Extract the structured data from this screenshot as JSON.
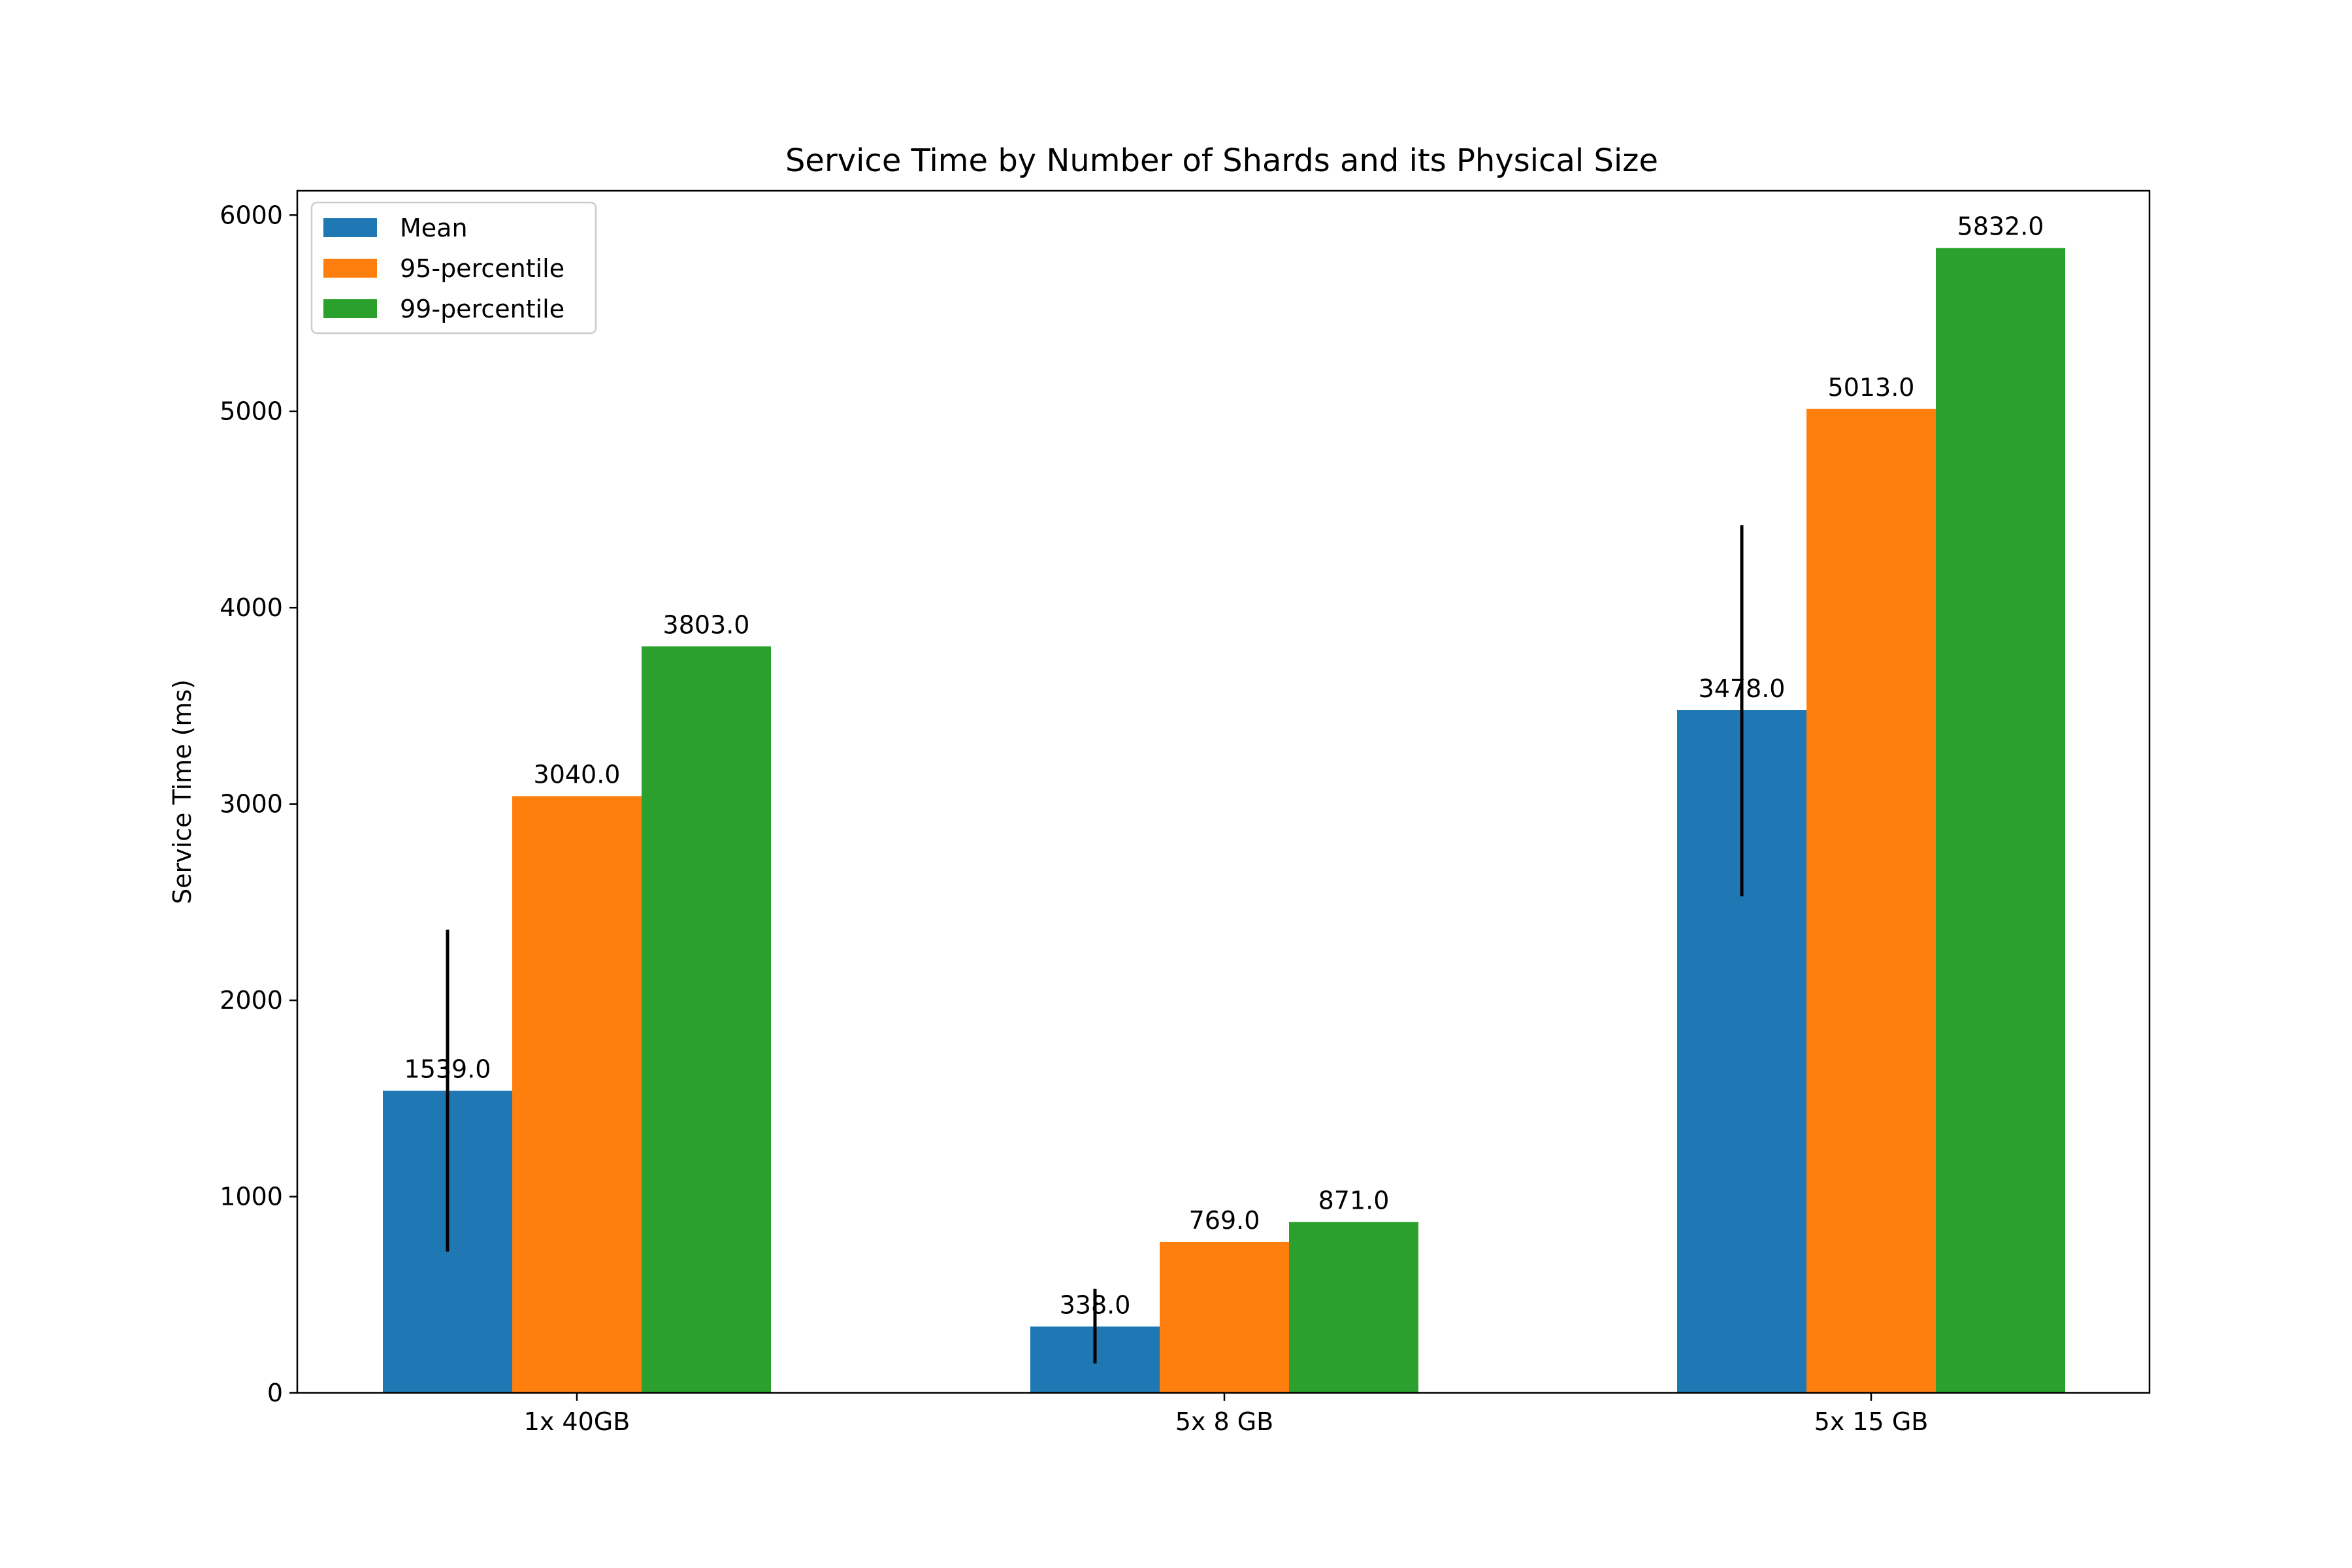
{
  "chart_data": {
    "type": "bar",
    "title": "Service Time by Number of Shards and its Physical Size",
    "xlabel": "",
    "ylabel": "Service Time (ms)",
    "categories": [
      "1x 40GB",
      "5x 8 GB",
      "5x 15 GB"
    ],
    "ylim": [
      0,
      6124
    ],
    "yticks": [
      0,
      1000,
      2000,
      3000,
      4000,
      5000,
      6000
    ],
    "series": [
      {
        "name": "Mean",
        "color": "#1f77b4",
        "values": [
          1539.0,
          338.0,
          3478.0
        ],
        "error_low": [
          720,
          150,
          2530
        ],
        "error_high": [
          2360,
          530,
          4420
        ]
      },
      {
        "name": "95-percentile",
        "color": "#ff7f0e",
        "values": [
          3040.0,
          769.0,
          5013.0
        ]
      },
      {
        "name": "99-percentile",
        "color": "#2ca02c",
        "values": [
          3803.0,
          871.0,
          5832.0
        ]
      }
    ],
    "data_labels": [
      [
        "1539.0",
        "338.0",
        "3478.0"
      ],
      [
        "3040.0",
        "769.0",
        "5013.0"
      ],
      [
        "3803.0",
        "871.0",
        "5832.0"
      ]
    ],
    "legend": {
      "position": "top-left",
      "entries": [
        "Mean",
        "95-percentile",
        "99-percentile"
      ]
    },
    "grid": false
  }
}
